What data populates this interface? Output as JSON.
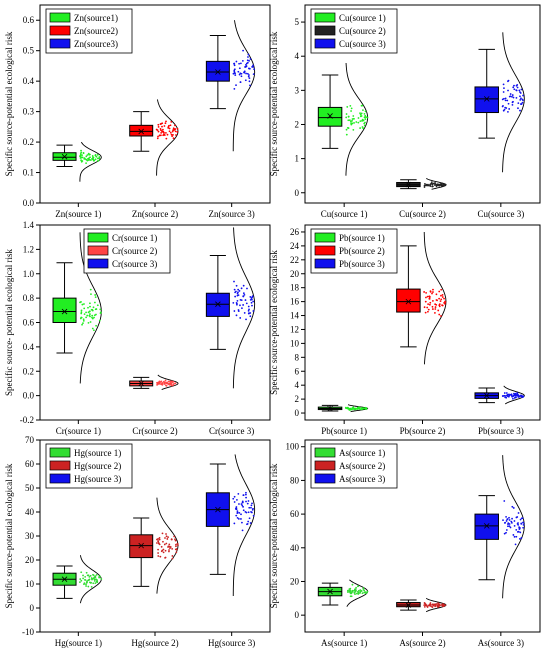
{
  "chart_data": [
    {
      "type": "box",
      "ylabel": "Specific source-potential ecological risk",
      "ylim": [
        0,
        0.65
      ],
      "yticks": [
        0.0,
        0.1,
        0.2,
        0.3,
        0.4,
        0.5,
        0.6
      ],
      "ytick_labels": [
        "0.0",
        "0.1",
        "0.2",
        "0.3",
        "0.4",
        "0.5",
        "0.6"
      ],
      "categories": [
        "Zn(source 1)",
        "Zn(source 2)",
        "Zn(source 3)"
      ],
      "legend": [
        "Zn(source1)",
        "Zn(source2)",
        "Zn(source3)"
      ],
      "legend_position": "top-left",
      "series": [
        {
          "color": "#22ee22",
          "whisker_low": 0.12,
          "q1": 0.14,
          "median": 0.15,
          "q3": 0.165,
          "whisker_high": 0.19,
          "mean": 0.152,
          "pt_min": 0.07,
          "pt_max": 0.2
        },
        {
          "color": "#ff0000",
          "whisker_low": 0.17,
          "q1": 0.22,
          "median": 0.235,
          "q3": 0.255,
          "whisker_high": 0.3,
          "mean": 0.235,
          "pt_min": 0.09,
          "pt_max": 0.34
        },
        {
          "color": "#1010ee",
          "whisker_low": 0.31,
          "q1": 0.4,
          "median": 0.43,
          "q3": 0.465,
          "whisker_high": 0.55,
          "mean": 0.43,
          "pt_min": 0.17,
          "pt_max": 0.6
        }
      ]
    },
    {
      "type": "box",
      "ylabel": "Specific source-potential ecological risk",
      "ylim": [
        -0.3,
        5.5
      ],
      "yticks": [
        0,
        1,
        2,
        3,
        4,
        5
      ],
      "ytick_labels": [
        "0",
        "1",
        "2",
        "3",
        "4",
        "5"
      ],
      "categories": [
        "Cu(source 1)",
        "Cu(source 2)",
        "Cu(source 3)"
      ],
      "legend": [
        "Cu(source 1)",
        "Cu(source 2)",
        "Cu(source 3)"
      ],
      "legend_position": "top-left",
      "series": [
        {
          "color": "#22ee22",
          "whisker_low": 1.3,
          "q1": 1.95,
          "median": 2.2,
          "q3": 2.5,
          "whisker_high": 3.45,
          "mean": 2.25,
          "pt_min": 0.5,
          "pt_max": 3.8
        },
        {
          "color": "#222222",
          "whisker_low": 0.12,
          "q1": 0.18,
          "median": 0.23,
          "q3": 0.3,
          "whisker_high": 0.38,
          "mean": 0.24,
          "pt_min": 0.1,
          "pt_max": 0.42
        },
        {
          "color": "#1010ee",
          "whisker_low": 1.6,
          "q1": 2.35,
          "median": 2.75,
          "q3": 3.1,
          "whisker_high": 4.2,
          "mean": 2.75,
          "pt_min": 0.6,
          "pt_max": 4.7
        }
      ]
    },
    {
      "type": "box",
      "ylabel": "Specific source- potential ecological risk",
      "ylim": [
        -0.2,
        1.4
      ],
      "yticks": [
        -0.2,
        0.0,
        0.2,
        0.4,
        0.6,
        0.8,
        1.0,
        1.2,
        1.4
      ],
      "ytick_labels": [
        "-0.2",
        "0.0",
        "0.2",
        "0.4",
        "0.6",
        "0.8",
        "1.0",
        "1.2",
        "1.4"
      ],
      "categories": [
        "Cr(source 1)",
        "Cr(source 2)",
        "Cr(source 3)"
      ],
      "legend": [
        "Cr(source 1)",
        "Cr(source 2)",
        "Cr(source 3)"
      ],
      "legend_position": "top-center",
      "series": [
        {
          "color": "#22ee22",
          "whisker_low": 0.35,
          "q1": 0.6,
          "median": 0.69,
          "q3": 0.8,
          "whisker_high": 1.09,
          "mean": 0.69,
          "pt_min": 0.1,
          "pt_max": 1.34
        },
        {
          "color": "#ff4444",
          "whisker_low": 0.06,
          "q1": 0.08,
          "median": 0.1,
          "q3": 0.12,
          "whisker_high": 0.15,
          "mean": 0.1,
          "pt_min": 0.05,
          "pt_max": 0.17
        },
        {
          "color": "#1010ee",
          "whisker_low": 0.38,
          "q1": 0.65,
          "median": 0.75,
          "q3": 0.84,
          "whisker_high": 1.15,
          "mean": 0.75,
          "pt_min": 0.06,
          "pt_max": 1.38
        }
      ]
    },
    {
      "type": "box",
      "ylabel": "Specific source-potential ecological risk",
      "ylim": [
        -1,
        27
      ],
      "yticks": [
        0,
        2,
        4,
        6,
        8,
        10,
        12,
        14,
        16,
        18,
        20,
        22,
        24,
        26
      ],
      "ytick_labels": [
        "0",
        "2",
        "4",
        "6",
        "8",
        "10",
        "12",
        "14",
        "16",
        "18",
        "20",
        "22",
        "24",
        "26"
      ],
      "categories": [
        "Pb(source 1)",
        "Pb(source 2)",
        "Pb(source 3)"
      ],
      "legend": [
        "Pb(source 1)",
        "Pb(source 2)",
        "Pb(source 3)"
      ],
      "legend_position": "top-left",
      "series": [
        {
          "color": "#22ee22",
          "whisker_low": 0.3,
          "q1": 0.5,
          "median": 0.65,
          "q3": 0.85,
          "whisker_high": 1.1,
          "mean": 0.65,
          "pt_min": 0.2,
          "pt_max": 1.2
        },
        {
          "color": "#ff0000",
          "whisker_low": 9.5,
          "q1": 14.5,
          "median": 16.0,
          "q3": 17.8,
          "whisker_high": 24.0,
          "mean": 16.0,
          "pt_min": 7.0,
          "pt_max": 26.0
        },
        {
          "color": "#1010ee",
          "whisker_low": 1.5,
          "q1": 2.1,
          "median": 2.5,
          "q3": 2.9,
          "whisker_high": 3.6,
          "mean": 2.5,
          "pt_min": 1.3,
          "pt_max": 3.9
        }
      ]
    },
    {
      "type": "box",
      "ylabel": "Specific source-potential ecological risk",
      "ylim": [
        -10,
        70
      ],
      "yticks": [
        -10,
        0,
        10,
        20,
        30,
        40,
        50,
        60,
        70
      ],
      "ytick_labels": [
        "-10",
        "0",
        "10",
        "20",
        "30",
        "40",
        "50",
        "60",
        "70"
      ],
      "categories": [
        "Hg(source 1)",
        "Hg(source 2)",
        "Hg(source 3)"
      ],
      "legend": [
        "Hg(source 1)",
        "Hg(source 2)",
        "Hg(source 3)"
      ],
      "legend_position": "top-left",
      "series": [
        {
          "color": "#33dd33",
          "whisker_low": 4,
          "q1": 9.5,
          "median": 12,
          "q3": 14.5,
          "whisker_high": 17.5,
          "mean": 12,
          "pt_min": 2,
          "pt_max": 22
        },
        {
          "color": "#cc2222",
          "whisker_low": 9,
          "q1": 21,
          "median": 26,
          "q3": 30.5,
          "whisker_high": 37.5,
          "mean": 26,
          "pt_min": 6,
          "pt_max": 46
        },
        {
          "color": "#1010ee",
          "whisker_low": 14,
          "q1": 34,
          "median": 41,
          "q3": 48,
          "whisker_high": 60,
          "mean": 41,
          "pt_min": 5,
          "pt_max": 64
        }
      ]
    },
    {
      "type": "box",
      "ylabel": "Specific source-potential ecological risk",
      "ylim": [
        -10,
        104
      ],
      "yticks": [
        0,
        20,
        40,
        60,
        80,
        100
      ],
      "ytick_labels": [
        "0",
        "20",
        "40",
        "60",
        "80",
        "100"
      ],
      "categories": [
        "As(source 1)",
        "As(source 2)",
        "As(source 3)"
      ],
      "legend": [
        "As(source 1)",
        "As(source 2)",
        "As(source 3)"
      ],
      "legend_position": "top-left",
      "series": [
        {
          "color": "#33dd33",
          "whisker_low": 6,
          "q1": 11.5,
          "median": 14,
          "q3": 16.5,
          "whisker_high": 19,
          "mean": 14,
          "pt_min": 5,
          "pt_max": 21
        },
        {
          "color": "#cc2222",
          "whisker_low": 3,
          "q1": 5,
          "median": 6,
          "q3": 7.5,
          "whisker_high": 9,
          "mean": 6,
          "pt_min": 2,
          "pt_max": 10
        },
        {
          "color": "#1010ee",
          "whisker_low": 21,
          "q1": 45,
          "median": 53,
          "q3": 60,
          "whisker_high": 71,
          "mean": 53,
          "pt_min": 10,
          "pt_max": 95
        }
      ]
    }
  ]
}
